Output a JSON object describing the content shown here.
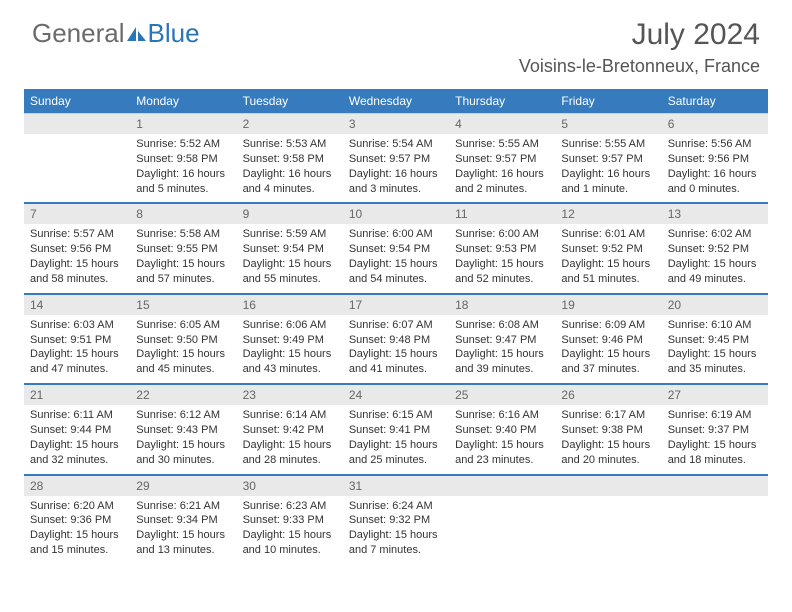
{
  "logo": {
    "word1": "General",
    "word2": "Blue"
  },
  "title": "July 2024",
  "location": "Voisins-le-Bretonneux, France",
  "day_headers": [
    "Sunday",
    "Monday",
    "Tuesday",
    "Wednesday",
    "Thursday",
    "Friday",
    "Saturday"
  ],
  "colors": {
    "header_bg": "#357bbd",
    "header_text": "#ffffff",
    "daynum_bg": "#e9e9e9",
    "row_divider": "#357bbd",
    "logo_gray": "#6b6b6b",
    "logo_blue": "#2a74b8"
  },
  "weeks": [
    {
      "nums": [
        "",
        "1",
        "2",
        "3",
        "4",
        "5",
        "6"
      ],
      "cells": [
        null,
        {
          "sr": "Sunrise: 5:52 AM",
          "ss": "Sunset: 9:58 PM",
          "dl": "Daylight: 16 hours and 5 minutes."
        },
        {
          "sr": "Sunrise: 5:53 AM",
          "ss": "Sunset: 9:58 PM",
          "dl": "Daylight: 16 hours and 4 minutes."
        },
        {
          "sr": "Sunrise: 5:54 AM",
          "ss": "Sunset: 9:57 PM",
          "dl": "Daylight: 16 hours and 3 minutes."
        },
        {
          "sr": "Sunrise: 5:55 AM",
          "ss": "Sunset: 9:57 PM",
          "dl": "Daylight: 16 hours and 2 minutes."
        },
        {
          "sr": "Sunrise: 5:55 AM",
          "ss": "Sunset: 9:57 PM",
          "dl": "Daylight: 16 hours and 1 minute."
        },
        {
          "sr": "Sunrise: 5:56 AM",
          "ss": "Sunset: 9:56 PM",
          "dl": "Daylight: 16 hours and 0 minutes."
        }
      ]
    },
    {
      "nums": [
        "7",
        "8",
        "9",
        "10",
        "11",
        "12",
        "13"
      ],
      "cells": [
        {
          "sr": "Sunrise: 5:57 AM",
          "ss": "Sunset: 9:56 PM",
          "dl": "Daylight: 15 hours and 58 minutes."
        },
        {
          "sr": "Sunrise: 5:58 AM",
          "ss": "Sunset: 9:55 PM",
          "dl": "Daylight: 15 hours and 57 minutes."
        },
        {
          "sr": "Sunrise: 5:59 AM",
          "ss": "Sunset: 9:54 PM",
          "dl": "Daylight: 15 hours and 55 minutes."
        },
        {
          "sr": "Sunrise: 6:00 AM",
          "ss": "Sunset: 9:54 PM",
          "dl": "Daylight: 15 hours and 54 minutes."
        },
        {
          "sr": "Sunrise: 6:00 AM",
          "ss": "Sunset: 9:53 PM",
          "dl": "Daylight: 15 hours and 52 minutes."
        },
        {
          "sr": "Sunrise: 6:01 AM",
          "ss": "Sunset: 9:52 PM",
          "dl": "Daylight: 15 hours and 51 minutes."
        },
        {
          "sr": "Sunrise: 6:02 AM",
          "ss": "Sunset: 9:52 PM",
          "dl": "Daylight: 15 hours and 49 minutes."
        }
      ]
    },
    {
      "nums": [
        "14",
        "15",
        "16",
        "17",
        "18",
        "19",
        "20"
      ],
      "cells": [
        {
          "sr": "Sunrise: 6:03 AM",
          "ss": "Sunset: 9:51 PM",
          "dl": "Daylight: 15 hours and 47 minutes."
        },
        {
          "sr": "Sunrise: 6:05 AM",
          "ss": "Sunset: 9:50 PM",
          "dl": "Daylight: 15 hours and 45 minutes."
        },
        {
          "sr": "Sunrise: 6:06 AM",
          "ss": "Sunset: 9:49 PM",
          "dl": "Daylight: 15 hours and 43 minutes."
        },
        {
          "sr": "Sunrise: 6:07 AM",
          "ss": "Sunset: 9:48 PM",
          "dl": "Daylight: 15 hours and 41 minutes."
        },
        {
          "sr": "Sunrise: 6:08 AM",
          "ss": "Sunset: 9:47 PM",
          "dl": "Daylight: 15 hours and 39 minutes."
        },
        {
          "sr": "Sunrise: 6:09 AM",
          "ss": "Sunset: 9:46 PM",
          "dl": "Daylight: 15 hours and 37 minutes."
        },
        {
          "sr": "Sunrise: 6:10 AM",
          "ss": "Sunset: 9:45 PM",
          "dl": "Daylight: 15 hours and 35 minutes."
        }
      ]
    },
    {
      "nums": [
        "21",
        "22",
        "23",
        "24",
        "25",
        "26",
        "27"
      ],
      "cells": [
        {
          "sr": "Sunrise: 6:11 AM",
          "ss": "Sunset: 9:44 PM",
          "dl": "Daylight: 15 hours and 32 minutes."
        },
        {
          "sr": "Sunrise: 6:12 AM",
          "ss": "Sunset: 9:43 PM",
          "dl": "Daylight: 15 hours and 30 minutes."
        },
        {
          "sr": "Sunrise: 6:14 AM",
          "ss": "Sunset: 9:42 PM",
          "dl": "Daylight: 15 hours and 28 minutes."
        },
        {
          "sr": "Sunrise: 6:15 AM",
          "ss": "Sunset: 9:41 PM",
          "dl": "Daylight: 15 hours and 25 minutes."
        },
        {
          "sr": "Sunrise: 6:16 AM",
          "ss": "Sunset: 9:40 PM",
          "dl": "Daylight: 15 hours and 23 minutes."
        },
        {
          "sr": "Sunrise: 6:17 AM",
          "ss": "Sunset: 9:38 PM",
          "dl": "Daylight: 15 hours and 20 minutes."
        },
        {
          "sr": "Sunrise: 6:19 AM",
          "ss": "Sunset: 9:37 PM",
          "dl": "Daylight: 15 hours and 18 minutes."
        }
      ]
    },
    {
      "nums": [
        "28",
        "29",
        "30",
        "31",
        "",
        "",
        ""
      ],
      "cells": [
        {
          "sr": "Sunrise: 6:20 AM",
          "ss": "Sunset: 9:36 PM",
          "dl": "Daylight: 15 hours and 15 minutes."
        },
        {
          "sr": "Sunrise: 6:21 AM",
          "ss": "Sunset: 9:34 PM",
          "dl": "Daylight: 15 hours and 13 minutes."
        },
        {
          "sr": "Sunrise: 6:23 AM",
          "ss": "Sunset: 9:33 PM",
          "dl": "Daylight: 15 hours and 10 minutes."
        },
        {
          "sr": "Sunrise: 6:24 AM",
          "ss": "Sunset: 9:32 PM",
          "dl": "Daylight: 15 hours and 7 minutes."
        },
        null,
        null,
        null
      ]
    }
  ]
}
